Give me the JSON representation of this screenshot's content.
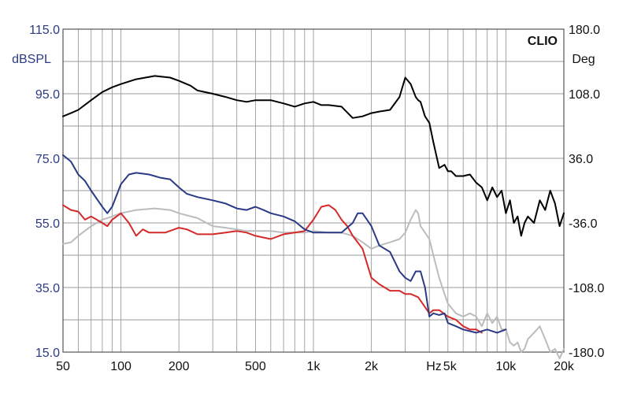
{
  "chart_data": {
    "type": "line",
    "brand": "CLIO",
    "y_left_label": "dBSPL",
    "y_right_label": "Deg",
    "x_unit_label": "Hz",
    "x_scale": "log",
    "xlim": [
      50,
      20000
    ],
    "ylim_left": [
      15,
      115
    ],
    "ylim_right": [
      -180,
      180
    ],
    "grid": true,
    "x_ticks": [
      {
        "value": 50,
        "label": "50"
      },
      {
        "value": 100,
        "label": "100"
      },
      {
        "value": 200,
        "label": "200"
      },
      {
        "value": 500,
        "label": "500"
      },
      {
        "value": 1000,
        "label": "1k"
      },
      {
        "value": 2000,
        "label": "2k"
      },
      {
        "value": 5000,
        "label": "5k"
      },
      {
        "value": 10000,
        "label": "10k"
      },
      {
        "value": 20000,
        "label": "20k"
      }
    ],
    "y_left_ticks": [
      "115.0",
      "95.0",
      "75.0",
      "55.0",
      "35.0",
      "15.0"
    ],
    "y_right_ticks": [
      "180.0",
      "108.0",
      "36.0",
      "-36.0",
      "-108.0",
      "-180.0"
    ],
    "series": [
      {
        "color": "#000000",
        "axis": "left",
        "x": [
          50,
          55,
          60,
          70,
          80,
          90,
          100,
          120,
          150,
          180,
          200,
          230,
          250,
          300,
          350,
          400,
          450,
          500,
          600,
          700,
          800,
          900,
          1000,
          1100,
          1200,
          1400,
          1600,
          1800,
          2000,
          2200,
          2500,
          2800,
          3000,
          3200,
          3400,
          3500,
          3600,
          3800,
          4000,
          4200,
          4500,
          4800,
          5000,
          5200,
          5500,
          6000,
          6500,
          7000,
          7500,
          8000,
          8500,
          9000,
          9500,
          10000,
          10500,
          11000,
          11500,
          12000,
          12500,
          13000,
          14000,
          15000,
          16000,
          17000,
          18000,
          19000,
          20000
        ],
        "y": [
          88,
          89,
          90,
          93,
          95.5,
          97,
          98,
          99.5,
          100.5,
          100,
          99,
          97.5,
          96,
          95,
          94,
          93,
          92.5,
          93,
          93,
          92,
          91,
          92,
          92.5,
          91.5,
          91.5,
          91,
          87.5,
          88,
          89,
          89.5,
          90,
          94,
          100,
          98,
          94,
          93,
          92.5,
          88,
          86,
          80,
          72,
          73,
          71,
          71,
          69.5,
          69.5,
          70,
          67.5,
          66,
          62,
          66,
          63,
          65,
          58,
          62,
          55,
          57,
          51,
          55,
          57,
          55,
          62,
          59,
          65,
          61,
          54,
          58
        ]
      },
      {
        "color": "#2b3a84",
        "axis": "left",
        "x": [
          50,
          55,
          60,
          65,
          70,
          80,
          85,
          90,
          100,
          110,
          120,
          140,
          160,
          180,
          200,
          220,
          250,
          300,
          350,
          400,
          450,
          500,
          550,
          600,
          700,
          800,
          900,
          1000,
          1100,
          1200,
          1400,
          1600,
          1700,
          1800,
          2000,
          2200,
          2500,
          2800,
          3000,
          3200,
          3400,
          3600,
          3800,
          4000,
          4200,
          4500,
          4800,
          5000,
          5500,
          6000,
          7000,
          8000,
          9000,
          10000
        ],
        "y": [
          76,
          74,
          70,
          68,
          65,
          60,
          58,
          60,
          67,
          70,
          70.5,
          70,
          69,
          68.5,
          66,
          64,
          63,
          62,
          61,
          59.5,
          59,
          60,
          59,
          58,
          57,
          55.5,
          53,
          52,
          52,
          52,
          52,
          55,
          58,
          58,
          54,
          48,
          46,
          40,
          38,
          37,
          40,
          40,
          35,
          26,
          27,
          26.5,
          27,
          24,
          23,
          22,
          21,
          22,
          21,
          22
        ]
      },
      {
        "color": "#d42a2a",
        "axis": "left",
        "x": [
          50,
          55,
          60,
          65,
          70,
          80,
          85,
          90,
          95,
          100,
          110,
          120,
          130,
          140,
          150,
          170,
          200,
          220,
          250,
          300,
          350,
          400,
          450,
          500,
          600,
          700,
          800,
          900,
          1000,
          1100,
          1200,
          1300,
          1400,
          1500,
          1600,
          1800,
          2000,
          2200,
          2500,
          2800,
          3000,
          3200,
          3500,
          4000,
          4200,
          4500,
          5000,
          5500,
          6000,
          6500,
          7000,
          7500
        ],
        "y": [
          60.5,
          59,
          58.5,
          56,
          57,
          55,
          54,
          56,
          57,
          58,
          55,
          51,
          53,
          52,
          52,
          52,
          53.5,
          53,
          51.5,
          51.5,
          52,
          52.5,
          52,
          51,
          50,
          51.5,
          52,
          52.5,
          56,
          60,
          60.5,
          59,
          56,
          54,
          51,
          47,
          38,
          36,
          34,
          34,
          33,
          33,
          32,
          27,
          28,
          28,
          26,
          25,
          23,
          22,
          22,
          21
        ]
      },
      {
        "color": "#bcbcbc",
        "axis": "left",
        "x": [
          50,
          55,
          60,
          70,
          80,
          90,
          100,
          120,
          150,
          180,
          200,
          250,
          300,
          350,
          400,
          450,
          500,
          600,
          700,
          800,
          900,
          1000,
          1200,
          1400,
          1600,
          1800,
          2000,
          2200,
          2500,
          2800,
          3000,
          3200,
          3400,
          3500,
          3600,
          3800,
          4000,
          4200,
          4500,
          4800,
          5000,
          5500,
          6000,
          6500,
          7000,
          7500,
          8000,
          8500,
          9000,
          9500,
          10000,
          10500,
          11000,
          11500,
          12000,
          12500,
          13000,
          14000,
          15000,
          16000,
          17000,
          18000,
          19000,
          20000
        ],
        "y": [
          48.5,
          49,
          51,
          54,
          56,
          57,
          58,
          59,
          59.5,
          59,
          58,
          56.5,
          54,
          53.5,
          53,
          52.5,
          52.5,
          52.5,
          52,
          52,
          52,
          52.5,
          52,
          52,
          51,
          49,
          47,
          48,
          49,
          50,
          52,
          56,
          59,
          58,
          54,
          52,
          50,
          45,
          38,
          33,
          30,
          27,
          26,
          27,
          26,
          23,
          27,
          24,
          26,
          22,
          22,
          18,
          17,
          18,
          15,
          16,
          19,
          21,
          23,
          19,
          15,
          16,
          13,
          16
        ]
      }
    ]
  }
}
